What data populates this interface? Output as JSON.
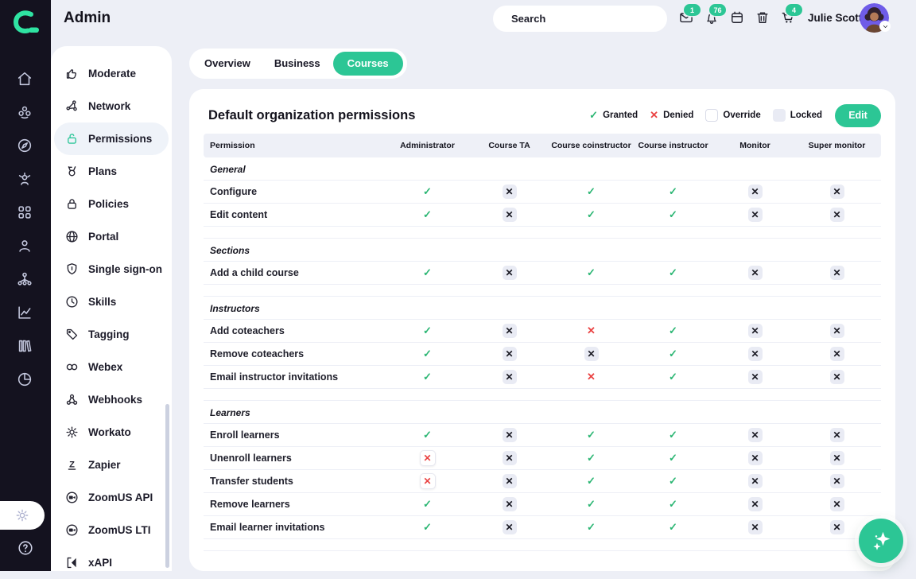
{
  "app": {
    "title": "Admin"
  },
  "header": {
    "search": {
      "placeholder": "Search"
    },
    "badges": {
      "mail": "1",
      "bell": "76",
      "cart": "4"
    },
    "user": {
      "name": "Julie Scott"
    }
  },
  "tabs": [
    {
      "label": "Overview",
      "active": false
    },
    {
      "label": "Business",
      "active": false
    },
    {
      "label": "Courses",
      "active": true
    }
  ],
  "rail": {
    "icons": [
      "home",
      "members",
      "compass",
      "community",
      "grid",
      "person",
      "hierarchy",
      "analytics",
      "library",
      "pie"
    ],
    "bottom": [
      "gear",
      "help"
    ]
  },
  "sidebar": {
    "items": [
      {
        "label": "Moderate",
        "icon": "thumbsup",
        "active": false
      },
      {
        "label": "Network",
        "icon": "network",
        "active": false
      },
      {
        "label": "Permissions",
        "icon": "lock-open",
        "active": true
      },
      {
        "label": "Plans",
        "icon": "medal",
        "active": false
      },
      {
        "label": "Policies",
        "icon": "lock",
        "active": false
      },
      {
        "label": "Portal",
        "icon": "globe",
        "active": false
      },
      {
        "label": "Single sign-on",
        "icon": "shield",
        "active": false
      },
      {
        "label": "Skills",
        "icon": "clock",
        "active": false
      },
      {
        "label": "Tagging",
        "icon": "tag",
        "active": false
      },
      {
        "label": "Webex",
        "icon": "webex",
        "active": false
      },
      {
        "label": "Webhooks",
        "icon": "webhook",
        "active": false
      },
      {
        "label": "Workato",
        "icon": "gear",
        "active": false
      },
      {
        "label": "Zapier",
        "icon": "zapier",
        "active": false
      },
      {
        "label": "ZoomUS API",
        "icon": "zoom",
        "active": false
      },
      {
        "label": "ZoomUS LTI",
        "icon": "zoom",
        "active": false
      },
      {
        "label": "xAPI",
        "icon": "xapi",
        "active": false
      }
    ]
  },
  "page": {
    "title": "Default organization permissions",
    "edit_label": "Edit",
    "legend": [
      {
        "type": "granted",
        "label": "Granted"
      },
      {
        "type": "denied",
        "label": "Denied"
      },
      {
        "type": "override",
        "label": "Override"
      },
      {
        "type": "locked",
        "label": "Locked"
      }
    ]
  },
  "table": {
    "columns": [
      "Permission",
      "Administrator",
      "Course TA",
      "Course coinstructor",
      "Course instructor",
      "Monitor",
      "Super monitor"
    ],
    "sections": [
      {
        "name": "General",
        "rows": [
          {
            "label": "Configure",
            "cells": [
              "granted",
              "locked",
              "granted",
              "granted",
              "locked",
              "locked"
            ]
          },
          {
            "label": "Edit content",
            "cells": [
              "granted",
              "locked",
              "granted",
              "granted",
              "locked",
              "locked"
            ]
          }
        ]
      },
      {
        "name": "Sections",
        "rows": [
          {
            "label": "Add a child course",
            "cells": [
              "granted",
              "locked",
              "granted",
              "granted",
              "locked",
              "locked"
            ]
          }
        ]
      },
      {
        "name": "Instructors",
        "rows": [
          {
            "label": "Add coteachers",
            "cells": [
              "granted",
              "locked",
              "denied",
              "granted",
              "locked",
              "locked"
            ]
          },
          {
            "label": "Remove coteachers",
            "cells": [
              "granted",
              "locked",
              "locked",
              "granted",
              "locked",
              "locked"
            ]
          },
          {
            "label": "Email instructor invitations",
            "cells": [
              "granted",
              "locked",
              "denied",
              "granted",
              "locked",
              "locked"
            ]
          }
        ]
      },
      {
        "name": "Learners",
        "rows": [
          {
            "label": "Enroll learners",
            "cells": [
              "granted",
              "locked",
              "granted",
              "granted",
              "locked",
              "locked"
            ]
          },
          {
            "label": "Unenroll learners",
            "cells": [
              "override-denied",
              "locked",
              "granted",
              "granted",
              "locked",
              "locked"
            ]
          },
          {
            "label": "Transfer students",
            "cells": [
              "override-denied",
              "locked",
              "granted",
              "granted",
              "locked",
              "locked"
            ]
          },
          {
            "label": "Remove learners",
            "cells": [
              "granted",
              "locked",
              "granted",
              "granted",
              "locked",
              "locked"
            ]
          },
          {
            "label": "Email learner invitations",
            "cells": [
              "granted",
              "locked",
              "granted",
              "granted",
              "locked",
              "locked"
            ]
          }
        ]
      }
    ]
  },
  "colors": {
    "accent": "#2cc695",
    "logo_green": "#2fe3a2",
    "granted": "#2bb673",
    "denied": "#ea4343",
    "rail_bg": "#14121f",
    "locked_box": "#e9ebf4",
    "page_bg": "#edeff6"
  }
}
